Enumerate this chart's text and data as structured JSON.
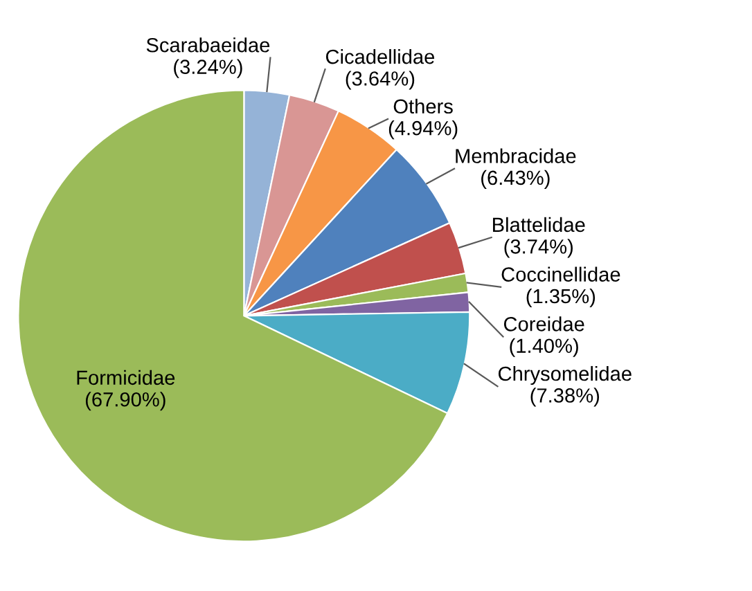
{
  "chart_data": {
    "type": "pie",
    "categories": [
      "Scarabaeidae",
      "Cicadellidae",
      "Others",
      "Membracidae",
      "Blattelidae",
      "Coccinellidae",
      "Coreidae",
      "Chrysomelidae",
      "Formicidae"
    ],
    "values": [
      3.24,
      3.64,
      4.94,
      6.43,
      3.74,
      1.35,
      1.4,
      7.38,
      67.9
    ],
    "colors": [
      "#95b3d7",
      "#d99694",
      "#f79646",
      "#4f81bd",
      "#c0504d",
      "#9bbb59",
      "#8064a2",
      "#4bacc6",
      "#9bbb59"
    ],
    "value_labels": [
      "(3.24%)",
      "(3.64%)",
      "(4.94%)",
      "(6.43%)",
      "(3.74%)",
      "(1.35%)",
      "(1.40%)",
      "(7.38%)",
      "(67.90%)"
    ],
    "legend": false
  }
}
